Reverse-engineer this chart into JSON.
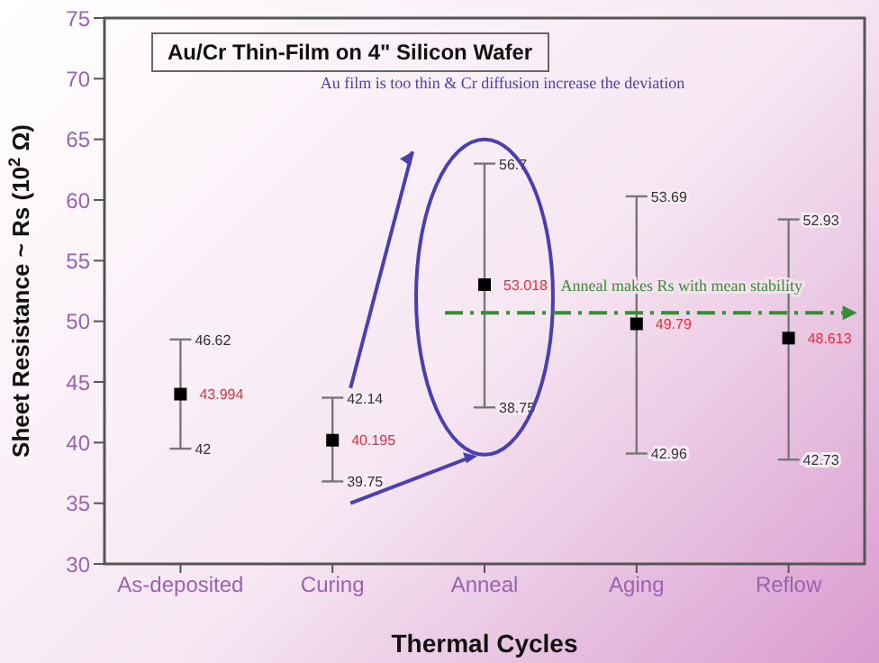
{
  "chart_data": {
    "type": "scatter",
    "title": "Au/Cr Thin-Film on 4\" Silicon Wafer",
    "xlabel": "Thermal Cycles",
    "ylabel": "Sheet Resistance ~ Rs (10$^{2}$ Ω)",
    "categories": [
      "As-deposited",
      "Curing",
      "Anneal",
      "Aging",
      "Reflow"
    ],
    "values": [
      43.994,
      40.195,
      53.018,
      49.79,
      48.613
    ],
    "errors": [
      [
        39.5,
        48.5
      ],
      [
        36.8,
        43.7
      ],
      [
        42.9,
        63
      ],
      [
        39.1,
        60.3
      ],
      [
        38.6,
        58.4
      ]
    ],
    "color": "#000000",
    "marker": "square",
    "data_labels": true,
    "ylim": [
      30,
      75
    ],
    "yticks": [
      30,
      35,
      40,
      45,
      50,
      55,
      60,
      65,
      70,
      75
    ],
    "grid": false,
    "legend": false,
    "annotations": [
      "Au film is too thin & Cr diffusion increase the deviation",
      "Anneal makes Rs with mean stability",
      {
        "text": "46.62",
        "x": "As-deposited",
        "y": 48.5
      },
      {
        "text": "42",
        "x": "As-deposited",
        "y": 39.5
      },
      {
        "text": "42.14",
        "x": "Curing",
        "y": 43.7
      },
      {
        "text": "39.75",
        "x": "Curing",
        "y": 36.8
      },
      {
        "text": "56.7",
        "x": "Anneal",
        "y": 63
      },
      {
        "text": "38.75",
        "x": "Anneal",
        "y": 42.9
      },
      {
        "text": "53.69",
        "x": "Aging",
        "y": 60.3
      },
      {
        "text": "42.96",
        "x": "Aging",
        "y": 39.1
      },
      {
        "text": "52.93",
        "x": "Reflow",
        "y": 58.4
      },
      {
        "text": "42.73",
        "x": "Reflow",
        "y": 38.6
      }
    ]
  }
}
